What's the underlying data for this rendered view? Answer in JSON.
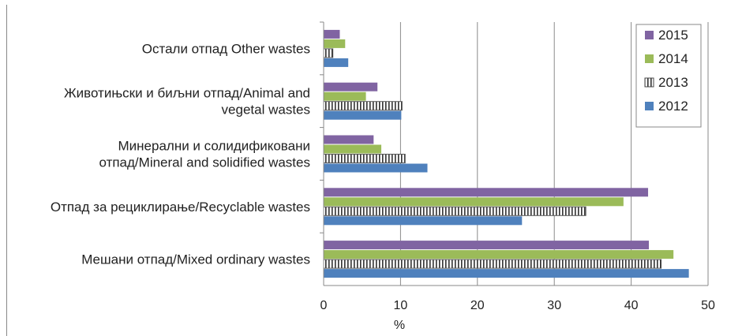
{
  "chart_data": {
    "type": "bar",
    "orientation": "horizontal",
    "title": "",
    "xlabel": "%",
    "ylabel": "",
    "xlim": [
      0,
      50
    ],
    "xticks": [
      0,
      10,
      20,
      30,
      40,
      50
    ],
    "grid": true,
    "legend_position": "top-right",
    "categories": [
      "Мешани отпад/Mixed ordinary wastes",
      "Отпад за рециклирање/Recyclable wastes",
      "Минерални и солидификовани отпад/Mineral and solidified wastes",
      "Животињски и биљни отпад/Animal and vegetal wastes",
      "Остали отпад Other wastes"
    ],
    "category_lines": [
      [
        "Мешани отпад/Mixed ordinary wastes"
      ],
      [
        "Отпад за рециклирање/Recyclable wastes"
      ],
      [
        "Минерални и солидификовани",
        "отпад/Mineral and solidified wastes"
      ],
      [
        "Животињски и биљни отпад/Animal and",
        "vegetal wastes"
      ],
      [
        "Остали отпад Other wastes"
      ]
    ],
    "series": [
      {
        "name": "2012",
        "color": "#4F81BD",
        "pattern": "solid",
        "values": [
          47.5,
          25.8,
          13.5,
          10.1,
          3.2
        ]
      },
      {
        "name": "2013",
        "color": "#FFFFFF",
        "pattern": "vertical-stripes",
        "values": [
          43.9,
          34.1,
          10.6,
          10.2,
          1.2
        ]
      },
      {
        "name": "2014",
        "color": "#9BBB59",
        "pattern": "solid",
        "values": [
          45.5,
          39.0,
          7.5,
          5.5,
          2.8
        ]
      },
      {
        "name": "2015",
        "color": "#8064A2",
        "pattern": "solid",
        "values": [
          42.3,
          42.2,
          6.5,
          7.0,
          2.1
        ]
      }
    ],
    "legend_order": [
      "2015",
      "2014",
      "2013",
      "2012"
    ]
  }
}
